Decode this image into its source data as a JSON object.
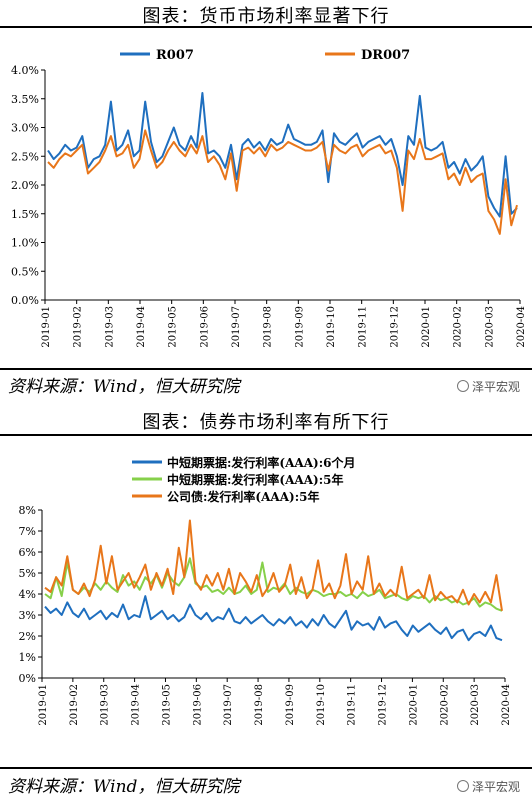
{
  "header1": {
    "title": "图表：货币市场利率显著下行"
  },
  "source1": {
    "text": "资料来源：Wind，恒大研究院"
  },
  "header2": {
    "title": "图表：债券市场利率有所下行"
  },
  "source2": {
    "text": "资料来源：Wind，恒大研究院"
  },
  "watermark": {
    "text": "泽平宏观"
  },
  "colors": {
    "blue": "#1f6fbf",
    "orange": "#e8761a",
    "green": "#86d04a"
  },
  "chart_data": [
    {
      "type": "line",
      "title": "",
      "ylim": [
        0,
        4.0
      ],
      "yticks": [
        "0.0%",
        "0.5%",
        "1.0%",
        "1.5%",
        "2.0%",
        "2.5%",
        "3.0%",
        "3.5%",
        "4.0%"
      ],
      "x_ticks": [
        "2019-01",
        "2019-02",
        "2019-03",
        "2019-04",
        "2019-05",
        "2019-06",
        "2019-07",
        "2019-08",
        "2019-09",
        "2019-10",
        "2019-11",
        "2019-12",
        "2020-01",
        "2020-02",
        "2020-03",
        "2020-04"
      ],
      "legend_position": "top",
      "grid": false,
      "series": [
        {
          "name": "R007",
          "color": "#1f6fbf",
          "values": [
            2.6,
            2.45,
            2.55,
            2.7,
            2.6,
            2.65,
            2.85,
            2.3,
            2.45,
            2.5,
            2.7,
            3.45,
            2.6,
            2.7,
            2.95,
            2.5,
            2.6,
            3.45,
            2.75,
            2.4,
            2.5,
            2.75,
            3.0,
            2.7,
            2.6,
            2.85,
            2.65,
            3.6,
            2.55,
            2.6,
            2.5,
            2.3,
            2.7,
            2.1,
            2.7,
            2.8,
            2.65,
            2.75,
            2.6,
            2.8,
            2.7,
            2.75,
            3.05,
            2.8,
            2.75,
            2.7,
            2.7,
            2.75,
            2.95,
            2.05,
            2.9,
            2.75,
            2.7,
            2.8,
            2.9,
            2.65,
            2.75,
            2.8,
            2.85,
            2.7,
            2.8,
            2.5,
            2.0,
            2.85,
            2.7,
            3.55,
            2.65,
            2.6,
            2.65,
            2.75,
            2.3,
            2.4,
            2.2,
            2.45,
            2.25,
            2.35,
            2.5,
            1.8,
            1.6,
            1.45,
            2.5,
            1.5,
            1.6
          ]
        },
        {
          "name": "DR007",
          "color": "#e8761a",
          "values": [
            2.4,
            2.3,
            2.45,
            2.55,
            2.5,
            2.6,
            2.7,
            2.2,
            2.3,
            2.4,
            2.6,
            2.85,
            2.5,
            2.55,
            2.7,
            2.3,
            2.45,
            2.95,
            2.6,
            2.3,
            2.4,
            2.6,
            2.75,
            2.6,
            2.5,
            2.7,
            2.55,
            2.85,
            2.4,
            2.5,
            2.35,
            2.1,
            2.55,
            1.9,
            2.6,
            2.65,
            2.55,
            2.65,
            2.5,
            2.7,
            2.6,
            2.65,
            2.75,
            2.7,
            2.65,
            2.6,
            2.6,
            2.65,
            2.75,
            2.25,
            2.7,
            2.6,
            2.55,
            2.65,
            2.7,
            2.5,
            2.6,
            2.65,
            2.7,
            2.55,
            2.6,
            2.3,
            1.55,
            2.6,
            2.45,
            2.8,
            2.45,
            2.45,
            2.5,
            2.55,
            2.1,
            2.2,
            2.0,
            2.3,
            2.05,
            2.15,
            2.2,
            1.55,
            1.4,
            1.15,
            2.1,
            1.3,
            1.65
          ]
        }
      ]
    },
    {
      "type": "line",
      "title": "",
      "ylim": [
        0,
        8
      ],
      "yticks": [
        "0%",
        "1%",
        "2%",
        "3%",
        "4%",
        "5%",
        "6%",
        "7%",
        "8%"
      ],
      "x_ticks": [
        "2019-01",
        "2019-02",
        "2019-03",
        "2019-04",
        "2019-05",
        "2019-06",
        "2019-07",
        "2019-08",
        "2019-09",
        "2019-10",
        "2019-11",
        "2019-12",
        "2020-01",
        "2020-02",
        "2020-03",
        "2020-04"
      ],
      "legend_position": "top-left",
      "grid": false,
      "series": [
        {
          "name": "中短期票据:发行利率(AAA):6个月",
          "color": "#1f6fbf",
          "values": [
            3.4,
            3.1,
            3.3,
            3.0,
            3.6,
            3.1,
            2.9,
            3.3,
            2.8,
            3.0,
            3.2,
            2.8,
            3.1,
            2.9,
            3.5,
            2.8,
            3.0,
            2.9,
            3.9,
            2.8,
            3.0,
            3.2,
            2.8,
            3.0,
            2.7,
            2.9,
            3.5,
            3.0,
            2.8,
            3.1,
            2.7,
            2.9,
            2.8,
            3.3,
            2.7,
            2.6,
            2.9,
            2.6,
            2.8,
            3.0,
            2.7,
            2.5,
            2.8,
            2.6,
            2.9,
            2.5,
            2.7,
            2.4,
            2.8,
            2.5,
            3.0,
            2.6,
            2.4,
            2.8,
            3.2,
            2.3,
            2.7,
            2.5,
            2.6,
            2.3,
            2.9,
            2.4,
            2.6,
            2.7,
            2.3,
            2.0,
            2.5,
            2.2,
            2.4,
            2.6,
            2.3,
            2.1,
            2.4,
            1.9,
            2.2,
            2.3,
            1.8,
            2.1,
            2.2,
            2.0,
            2.5,
            1.9,
            1.8
          ]
        },
        {
          "name": "中短期票据:发行利率(AAA):5年",
          "color": "#86d04a",
          "values": [
            4.0,
            3.8,
            4.8,
            3.9,
            5.5,
            4.2,
            4.0,
            4.3,
            4.1,
            4.5,
            4.2,
            4.6,
            4.3,
            4.1,
            4.9,
            4.4,
            4.6,
            4.2,
            4.8,
            4.5,
            4.9,
            4.3,
            5.0,
            4.6,
            4.4,
            4.8,
            5.7,
            4.5,
            4.3,
            4.4,
            4.1,
            4.2,
            4.0,
            4.3,
            4.0,
            4.1,
            4.4,
            4.0,
            4.2,
            5.5,
            4.1,
            4.3,
            4.2,
            4.5,
            4.0,
            4.3,
            4.1,
            4.0,
            4.2,
            4.1,
            3.9,
            4.0,
            4.0,
            4.1,
            3.9,
            4.0,
            3.8,
            4.1,
            3.9,
            4.0,
            4.2,
            3.8,
            3.9,
            4.0,
            3.8,
            3.7,
            3.9,
            3.8,
            3.9,
            3.6,
            3.9,
            3.7,
            3.8,
            3.6,
            3.7,
            3.5,
            3.6,
            3.8,
            3.4,
            3.6,
            3.5,
            3.3,
            3.2
          ]
        },
        {
          "name": "公司债:发行利率(AAA):5年",
          "color": "#e8761a",
          "values": [
            4.3,
            4.1,
            4.8,
            4.4,
            5.8,
            4.2,
            4.0,
            4.5,
            3.9,
            4.7,
            6.3,
            4.5,
            5.8,
            4.2,
            4.6,
            5.0,
            4.3,
            4.8,
            5.4,
            4.2,
            5.0,
            4.4,
            5.2,
            4.0,
            6.2,
            4.8,
            7.5,
            4.6,
            4.2,
            4.9,
            4.4,
            5.0,
            4.2,
            5.2,
            4.0,
            5.0,
            4.6,
            4.1,
            4.9,
            3.9,
            4.3,
            5.0,
            4.1,
            4.4,
            5.4,
            4.0,
            4.8,
            3.8,
            4.2,
            5.6,
            4.1,
            4.5,
            3.8,
            4.4,
            5.9,
            4.0,
            4.6,
            4.2,
            5.8,
            4.0,
            4.5,
            3.9,
            4.2,
            3.9,
            5.3,
            3.8,
            4.0,
            4.2,
            3.8,
            4.9,
            3.7,
            4.1,
            3.8,
            3.9,
            3.6,
            4.2,
            3.5,
            4.0,
            3.6,
            4.1,
            3.6,
            4.9,
            3.2
          ]
        }
      ]
    }
  ]
}
